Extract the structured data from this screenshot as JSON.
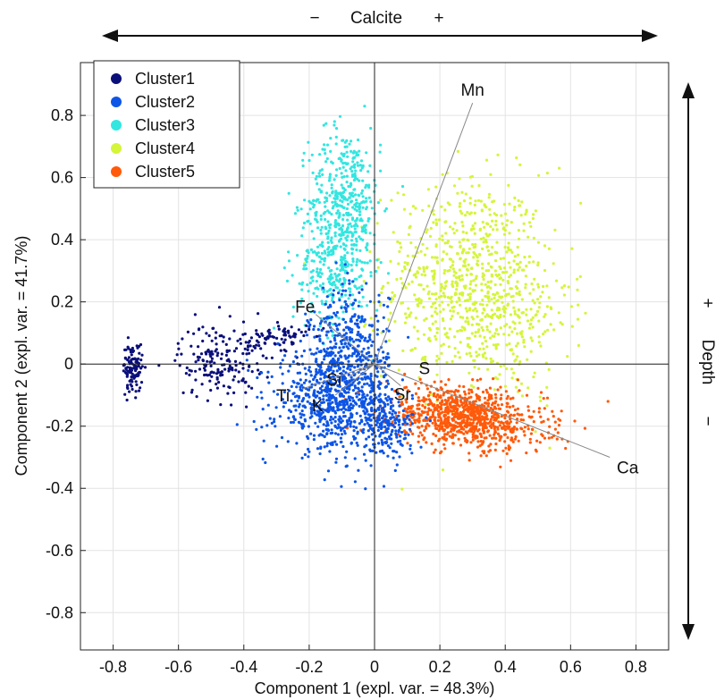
{
  "chart_data": {
    "type": "scatter",
    "title": "",
    "xlabel": "Component 1 (expl. var. = 48.3%)",
    "ylabel": "Component 2 (expl. var. = 41.7%)",
    "xlim": [
      -0.9,
      0.9
    ],
    "ylim": [
      -0.92,
      0.97
    ],
    "x_ticks": [
      -0.8,
      -0.6,
      -0.4,
      -0.2,
      0,
      0.2,
      0.4,
      0.6,
      0.8
    ],
    "y_ticks": [
      -0.8,
      -0.6,
      -0.4,
      -0.2,
      0,
      0.2,
      0.4,
      0.6,
      0.8
    ],
    "x_tick_labels": [
      "-0.8",
      "-0.6",
      "-0.4",
      "-0.2",
      "0",
      "0.2",
      "0.4",
      "0.6",
      "0.8"
    ],
    "y_tick_labels": [
      "-0.8",
      "-0.6",
      "-0.4",
      "-0.2",
      "0",
      "0.2",
      "0.4",
      "0.6",
      "0.8"
    ],
    "grid": true,
    "legend_position": "top-left",
    "series": [
      {
        "name": "Cluster1",
        "color": "#0a0f7a"
      },
      {
        "name": "Cluster2",
        "color": "#0d55e6"
      },
      {
        "name": "Cluster3",
        "color": "#33e6e0"
      },
      {
        "name": "Cluster4",
        "color": "#d4f53a"
      },
      {
        "name": "Cluster5",
        "color": "#ff5a0a"
      }
    ],
    "loadings": [
      {
        "label": "Mn",
        "x": 0.3,
        "y": 0.84
      },
      {
        "label": "Fe",
        "x": -0.18,
        "y": 0.16
      },
      {
        "label": "Si",
        "x": -0.08,
        "y": -0.04
      },
      {
        "label": "Ti",
        "x": -0.22,
        "y": -0.08
      },
      {
        "label": "K",
        "x": -0.12,
        "y": -0.1
      },
      {
        "label": "S",
        "x": 0.12,
        "y": -0.05
      },
      {
        "label": "Sr",
        "x": 0.08,
        "y": -0.07
      },
      {
        "label": "Ca",
        "x": 0.72,
        "y": -0.3
      }
    ],
    "top_annotation": {
      "minus": "−",
      "label": "Calcite",
      "plus": "+"
    },
    "right_annotation": {
      "plus": "+",
      "label": "Depth",
      "minus": "−"
    }
  }
}
